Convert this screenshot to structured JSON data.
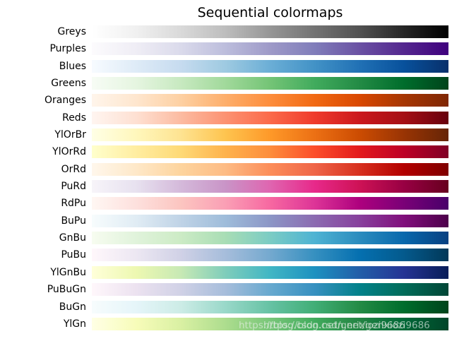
{
  "title": "Sequential colormaps",
  "watermark": {
    "text": "https://blog.csdn.net/gerixiozi9686",
    "color": "#ebf0ec",
    "copies": 2
  },
  "chart_data": {
    "type": "heatmap",
    "title": "Sequential colormaps",
    "description": "18 horizontal gradient swatch bars, one per matplotlib sequential colormap, each running light (left, value 0) to dark (right, value 1)",
    "x_range": [
      0,
      1
    ],
    "grid": false,
    "legend": "none",
    "rows": [
      {
        "label": "Greys",
        "colors": [
          "#ffffff",
          "#f0f0f0",
          "#d9d9d9",
          "#bdbdbd",
          "#969696",
          "#737373",
          "#525252",
          "#252525",
          "#000000"
        ]
      },
      {
        "label": "Purples",
        "colors": [
          "#fcfbfd",
          "#efedf5",
          "#dadaeb",
          "#bcbddc",
          "#9e9ac8",
          "#807dba",
          "#6a51a3",
          "#54278f",
          "#3f007d"
        ]
      },
      {
        "label": "Blues",
        "colors": [
          "#f7fbff",
          "#deebf7",
          "#c6dbef",
          "#9ecae1",
          "#6baed6",
          "#4292c6",
          "#2171b5",
          "#08519c",
          "#08306b"
        ]
      },
      {
        "label": "Greens",
        "colors": [
          "#f7fcf5",
          "#e5f5e0",
          "#c7e9c0",
          "#a1d99b",
          "#74c476",
          "#41ab5d",
          "#238b45",
          "#006d2c",
          "#00441b"
        ]
      },
      {
        "label": "Oranges",
        "colors": [
          "#fff5eb",
          "#fee6ce",
          "#fdd0a2",
          "#fdae6b",
          "#fd8d3c",
          "#f16913",
          "#d94801",
          "#a63603",
          "#7f2704"
        ]
      },
      {
        "label": "Reds",
        "colors": [
          "#fff5f0",
          "#fee0d2",
          "#fcbba1",
          "#fc9272",
          "#fb6a4a",
          "#ef3b2c",
          "#cb181d",
          "#a50f15",
          "#67000d"
        ]
      },
      {
        "label": "YlOrBr",
        "colors": [
          "#ffffe5",
          "#fff7bc",
          "#fee391",
          "#fec44f",
          "#fe9929",
          "#ec7014",
          "#cc4c02",
          "#993404",
          "#662506"
        ]
      },
      {
        "label": "YlOrRd",
        "colors": [
          "#ffffcc",
          "#ffeda0",
          "#fed976",
          "#feb24c",
          "#fd8d3c",
          "#fc4e2a",
          "#e31a1c",
          "#bd0026",
          "#800026"
        ]
      },
      {
        "label": "OrRd",
        "colors": [
          "#fff7ec",
          "#fee8c8",
          "#fdd49e",
          "#fdbb84",
          "#fc8d59",
          "#ef6548",
          "#d7301f",
          "#b30000",
          "#7f0000"
        ]
      },
      {
        "label": "PuRd",
        "colors": [
          "#f7f4f9",
          "#e7e1ef",
          "#d4b9da",
          "#c994c7",
          "#df65b0",
          "#e7298a",
          "#ce1256",
          "#980043",
          "#67001f"
        ]
      },
      {
        "label": "RdPu",
        "colors": [
          "#fff7f3",
          "#fde0dd",
          "#fcc5c0",
          "#fa9fb5",
          "#f768a1",
          "#dd3497",
          "#ae017e",
          "#7a0177",
          "#49006a"
        ]
      },
      {
        "label": "BuPu",
        "colors": [
          "#f7fcfd",
          "#e0ecf4",
          "#bfd3e6",
          "#9ebcda",
          "#8c96c6",
          "#8c6bb1",
          "#88419d",
          "#810f7c",
          "#4d004b"
        ]
      },
      {
        "label": "GnBu",
        "colors": [
          "#f7fcf0",
          "#e0f3db",
          "#ccebc5",
          "#a8ddb5",
          "#7bccc4",
          "#4eb3d3",
          "#2b8cbe",
          "#0868ac",
          "#084081"
        ]
      },
      {
        "label": "PuBu",
        "colors": [
          "#fff7fb",
          "#ece7f2",
          "#d0d1e6",
          "#a6bddb",
          "#74a9cf",
          "#3690c0",
          "#0570b0",
          "#045a8d",
          "#023858"
        ]
      },
      {
        "label": "YlGnBu",
        "colors": [
          "#ffffd9",
          "#edf8b1",
          "#c7e9b4",
          "#7fcdbb",
          "#41b6c4",
          "#1d91c0",
          "#225ea8",
          "#253494",
          "#081d58"
        ]
      },
      {
        "label": "PuBuGn",
        "colors": [
          "#fff7fb",
          "#ece2f0",
          "#d0d1e6",
          "#a6bddb",
          "#67a9cf",
          "#3690c0",
          "#02818a",
          "#016c59",
          "#014636"
        ]
      },
      {
        "label": "BuGn",
        "colors": [
          "#f7fcfd",
          "#e5f5f9",
          "#ccece6",
          "#99d8c9",
          "#66c2a4",
          "#41ae76",
          "#238b45",
          "#006d2c",
          "#00441b"
        ]
      },
      {
        "label": "YlGn",
        "colors": [
          "#ffffe5",
          "#f7fcb9",
          "#d9f0a3",
          "#addd8e",
          "#78c679",
          "#41ab5d",
          "#238443",
          "#006837",
          "#004529"
        ]
      }
    ]
  }
}
